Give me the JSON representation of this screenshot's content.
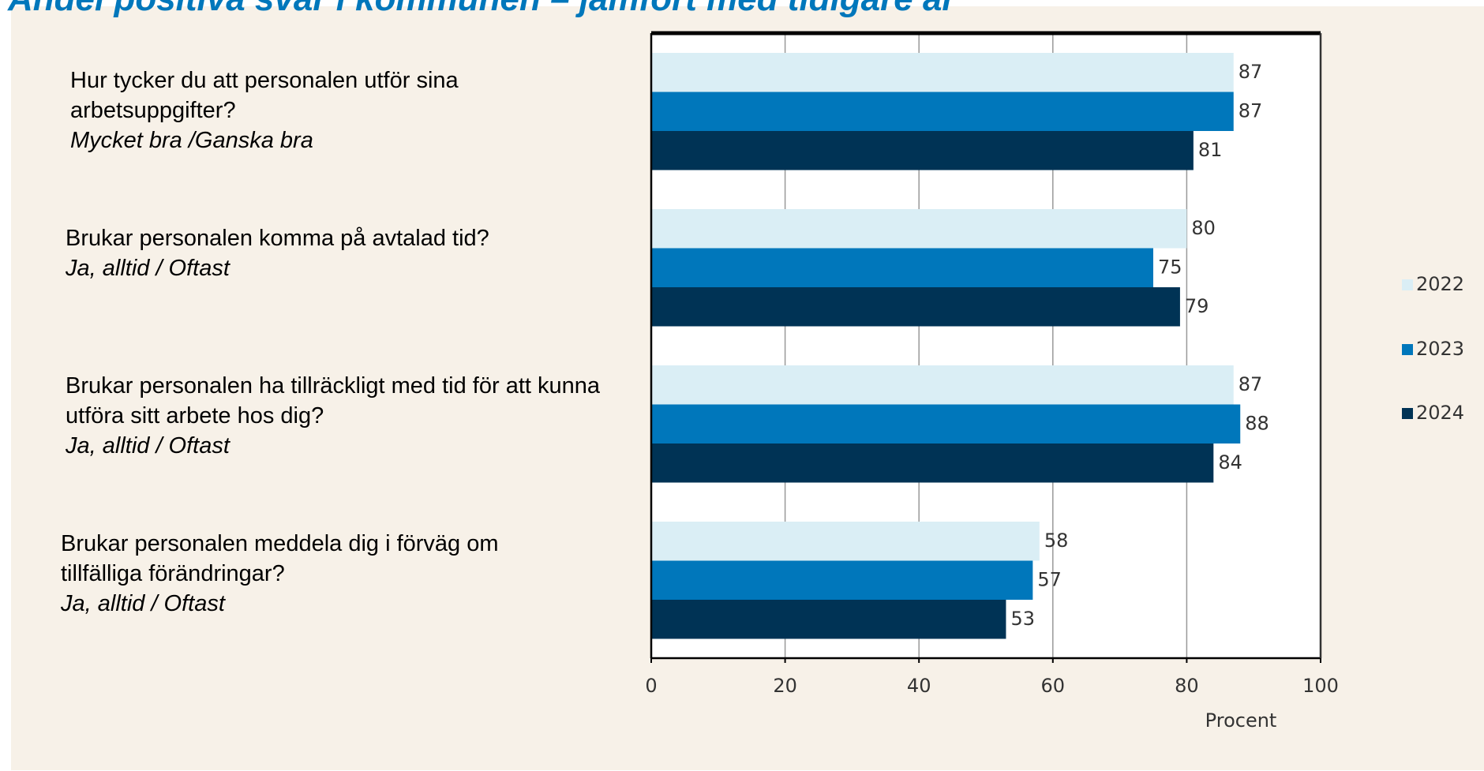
{
  "chart_data": {
    "type": "bar",
    "orientation": "horizontal",
    "title": "Andel positiva svar i kommunen – jämfört med tidigare år",
    "categories": [
      {
        "question": "Hur tycker du att personalen utför sina arbetsuppgifter?",
        "answer": "Mycket bra /Ganska bra"
      },
      {
        "question": "Brukar personalen komma på avtalad tid?",
        "answer": "Ja, alltid / Oftast"
      },
      {
        "question": "Brukar personalen ha tillräckligt med tid för att kunna utföra sitt arbete hos dig?",
        "answer": "Ja, alltid / Oftast"
      },
      {
        "question": "Brukar personalen meddela dig i förväg om tillfälliga förändringar?",
        "answer": "Ja, alltid / Oftast"
      }
    ],
    "series": [
      {
        "name": "2022",
        "color": "#daeef5",
        "values": [
          87,
          80,
          87,
          58
        ]
      },
      {
        "name": "2023",
        "color": "#0077bb",
        "values": [
          87,
          75,
          88,
          57
        ]
      },
      {
        "name": "2024",
        "color": "#003355",
        "values": [
          81,
          79,
          84,
          53
        ]
      }
    ],
    "xlabel": "Procent",
    "xlim": [
      0,
      100
    ],
    "xticks": [
      0,
      20,
      40,
      60,
      80,
      100
    ],
    "grid": true,
    "legend": "right"
  }
}
